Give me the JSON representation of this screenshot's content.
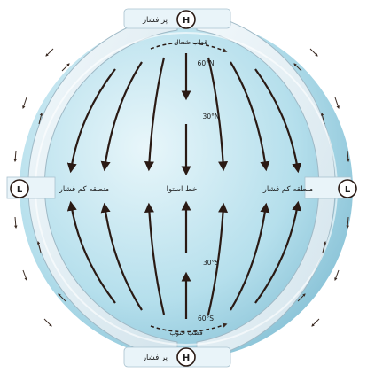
{
  "markers": {
    "high_top": "H",
    "high_bottom": "H",
    "low_left": "L",
    "low_right": "L"
  },
  "labels": {
    "high_pressure_top": "پر فشار",
    "high_pressure_bottom": "پر فشار",
    "north_pole": "قطب شمال",
    "south_pole": "قطب جنوب",
    "low_pressure_left": "منطقه کم فشار",
    "low_pressure_right": "منطقه کم فشار",
    "equator": "خط استوا",
    "lat_60n": "60°N",
    "lat_30n": "30°N",
    "lat_30s": "30°S",
    "lat_60s": "60°S"
  },
  "colors": {
    "ocean_light": "#d9eef5",
    "ocean_dark": "#8cc7dc",
    "band": "#e6f2f8",
    "band_edge": "#9fb9c6",
    "arrow": "#2a1a14"
  }
}
